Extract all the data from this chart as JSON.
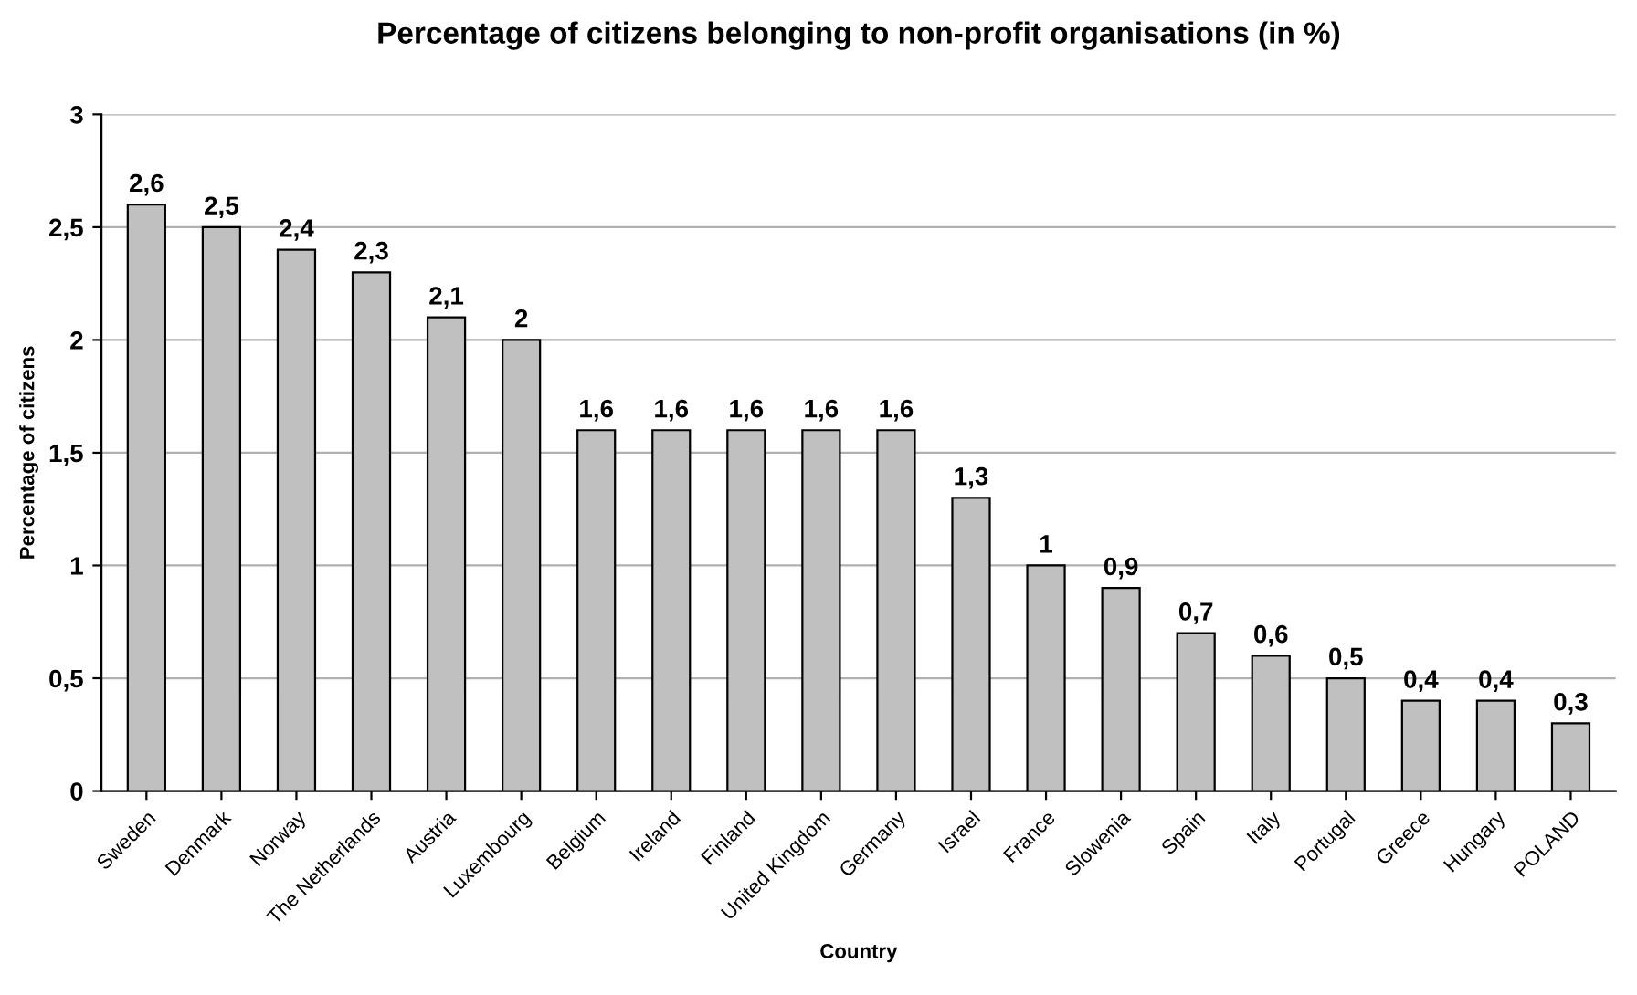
{
  "chart_data": {
    "type": "bar",
    "title": "Percentage of citizens belonging to non-profit organisations (in %)",
    "xlabel": "Country",
    "ylabel": "Percentage of citizens",
    "categories": [
      "Sweden",
      "Denmark",
      "Norway",
      "The Netherlands",
      "Austria",
      "Luxembourg",
      "Belgium",
      "Ireland",
      "Finland",
      "United Kingdom",
      "Germany",
      "Israel",
      "France",
      "Slowenia",
      "Spain",
      "Italy",
      "Portugal",
      "Greece",
      "Hungary",
      "POLAND"
    ],
    "values": [
      2.6,
      2.5,
      2.4,
      2.3,
      2.1,
      2,
      1.6,
      1.6,
      1.6,
      1.6,
      1.6,
      1.3,
      1,
      0.9,
      0.7,
      0.6,
      0.5,
      0.4,
      0.4,
      0.3
    ],
    "value_labels": [
      "2,6",
      "2,5",
      "2,4",
      "2,3",
      "2,1",
      "2",
      "1,6",
      "1,6",
      "1,6",
      "1,6",
      "1,6",
      "1,3",
      "1",
      "0,9",
      "0,7",
      "0,6",
      "0,5",
      "0,4",
      "0,4",
      "0,3"
    ],
    "color": "#c0c0c0",
    "ylim": [
      0,
      3
    ],
    "yticks": [
      0,
      {
        "value": 0.5,
        "label": "0,5"
      },
      1,
      {
        "value": 1.5,
        "label": "1,5"
      },
      2,
      {
        "value": 2.5,
        "label": "2,5"
      },
      3
    ],
    "grid": "y",
    "legend": false
  }
}
